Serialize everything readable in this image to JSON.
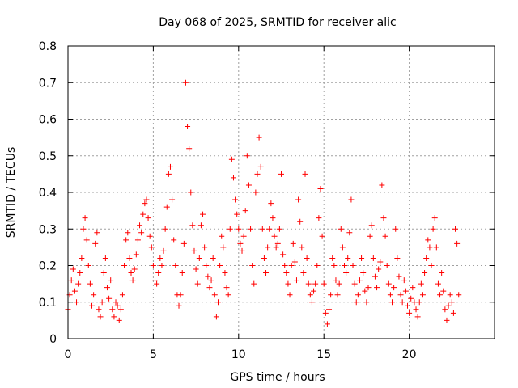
{
  "chart_data": {
    "type": "scatter",
    "title": "Day 068 of 2025, SRMTID for receiver alic",
    "xlabel": "GPS time / hours",
    "ylabel": "SRMTID / TECUs",
    "xlim": [
      0,
      25
    ],
    "ylim": [
      0,
      0.8
    ],
    "xticks": [
      0,
      5,
      10,
      15,
      20
    ],
    "yticks": [
      0,
      0.1,
      0.2,
      0.3,
      0.4,
      0.5,
      0.6,
      0.7,
      0.8
    ],
    "xtick_labels": [
      "0",
      "5",
      "10",
      "15",
      "20"
    ],
    "ytick_labels": [
      "0",
      "0.1",
      "0.2",
      "0.3",
      "0.4",
      "0.5",
      "0.6",
      "0.7",
      "0.8"
    ],
    "grid": true,
    "marker": "+",
    "color": "#ff0000",
    "series": [
      {
        "name": "SRMTID",
        "points": [
          [
            0.0,
            0.08
          ],
          [
            0.1,
            0.12
          ],
          [
            0.2,
            0.16
          ],
          [
            0.3,
            0.19
          ],
          [
            0.4,
            0.13
          ],
          [
            0.5,
            0.1
          ],
          [
            0.6,
            0.15
          ],
          [
            0.7,
            0.18
          ],
          [
            0.8,
            0.22
          ],
          [
            0.9,
            0.3
          ],
          [
            1.0,
            0.33
          ],
          [
            1.1,
            0.27
          ],
          [
            1.2,
            0.2
          ],
          [
            1.3,
            0.15
          ],
          [
            1.4,
            0.09
          ],
          [
            1.5,
            0.12
          ],
          [
            1.6,
            0.26
          ],
          [
            1.7,
            0.29
          ],
          [
            1.8,
            0.08
          ],
          [
            1.9,
            0.06
          ],
          [
            2.0,
            0.1
          ],
          [
            2.1,
            0.18
          ],
          [
            2.2,
            0.22
          ],
          [
            2.3,
            0.14
          ],
          [
            2.4,
            0.11
          ],
          [
            2.5,
            0.16
          ],
          [
            2.6,
            0.08
          ],
          [
            2.7,
            0.06
          ],
          [
            2.8,
            0.1
          ],
          [
            2.9,
            0.09
          ],
          [
            3.0,
            0.05
          ],
          [
            3.1,
            0.08
          ],
          [
            3.2,
            0.12
          ],
          [
            3.3,
            0.2
          ],
          [
            3.4,
            0.27
          ],
          [
            3.5,
            0.29
          ],
          [
            3.6,
            0.22
          ],
          [
            3.7,
            0.18
          ],
          [
            3.8,
            0.16
          ],
          [
            3.9,
            0.19
          ],
          [
            4.0,
            0.23
          ],
          [
            4.1,
            0.27
          ],
          [
            4.2,
            0.31
          ],
          [
            4.3,
            0.29
          ],
          [
            4.4,
            0.34
          ],
          [
            4.5,
            0.37
          ],
          [
            4.6,
            0.38
          ],
          [
            4.7,
            0.33
          ],
          [
            4.8,
            0.28
          ],
          [
            4.9,
            0.25
          ],
          [
            5.0,
            0.2
          ],
          [
            5.1,
            0.16
          ],
          [
            5.2,
            0.15
          ],
          [
            5.3,
            0.18
          ],
          [
            5.4,
            0.22
          ],
          [
            5.5,
            0.2
          ],
          [
            5.6,
            0.24
          ],
          [
            5.7,
            0.3
          ],
          [
            5.8,
            0.36
          ],
          [
            5.9,
            0.45
          ],
          [
            6.0,
            0.47
          ],
          [
            6.1,
            0.38
          ],
          [
            6.2,
            0.27
          ],
          [
            6.3,
            0.2
          ],
          [
            6.4,
            0.12
          ],
          [
            6.5,
            0.09
          ],
          [
            6.6,
            0.12
          ],
          [
            6.7,
            0.18
          ],
          [
            6.8,
            0.26
          ],
          [
            6.9,
            0.7
          ],
          [
            7.0,
            0.58
          ],
          [
            7.1,
            0.52
          ],
          [
            7.2,
            0.4
          ],
          [
            7.3,
            0.31
          ],
          [
            7.4,
            0.24
          ],
          [
            7.5,
            0.19
          ],
          [
            7.6,
            0.15
          ],
          [
            7.7,
            0.22
          ],
          [
            7.8,
            0.31
          ],
          [
            7.9,
            0.34
          ],
          [
            8.0,
            0.25
          ],
          [
            8.1,
            0.2
          ],
          [
            8.2,
            0.17
          ],
          [
            8.3,
            0.14
          ],
          [
            8.4,
            0.16
          ],
          [
            8.5,
            0.22
          ],
          [
            8.6,
            0.12
          ],
          [
            8.7,
            0.06
          ],
          [
            8.8,
            0.1
          ],
          [
            8.9,
            0.2
          ],
          [
            9.0,
            0.28
          ],
          [
            9.1,
            0.25
          ],
          [
            9.2,
            0.18
          ],
          [
            9.3,
            0.14
          ],
          [
            9.4,
            0.12
          ],
          [
            9.5,
            0.3
          ],
          [
            9.6,
            0.49
          ],
          [
            9.7,
            0.44
          ],
          [
            9.8,
            0.38
          ],
          [
            9.9,
            0.34
          ],
          [
            10.0,
            0.3
          ],
          [
            10.1,
            0.26
          ],
          [
            10.2,
            0.24
          ],
          [
            10.3,
            0.28
          ],
          [
            10.4,
            0.35
          ],
          [
            10.5,
            0.5
          ],
          [
            10.6,
            0.42
          ],
          [
            10.7,
            0.3
          ],
          [
            10.8,
            0.2
          ],
          [
            10.9,
            0.15
          ],
          [
            11.0,
            0.4
          ],
          [
            11.1,
            0.45
          ],
          [
            11.2,
            0.55
          ],
          [
            11.3,
            0.47
          ],
          [
            11.4,
            0.3
          ],
          [
            11.5,
            0.22
          ],
          [
            11.6,
            0.18
          ],
          [
            11.7,
            0.25
          ],
          [
            11.8,
            0.3
          ],
          [
            11.9,
            0.37
          ],
          [
            12.0,
            0.33
          ],
          [
            12.1,
            0.28
          ],
          [
            12.2,
            0.25
          ],
          [
            12.3,
            0.26
          ],
          [
            12.4,
            0.3
          ],
          [
            12.5,
            0.45
          ],
          [
            12.6,
            0.23
          ],
          [
            12.7,
            0.2
          ],
          [
            12.8,
            0.18
          ],
          [
            12.9,
            0.15
          ],
          [
            13.0,
            0.12
          ],
          [
            13.1,
            0.2
          ],
          [
            13.2,
            0.26
          ],
          [
            13.3,
            0.21
          ],
          [
            13.4,
            0.16
          ],
          [
            13.5,
            0.38
          ],
          [
            13.6,
            0.32
          ],
          [
            13.7,
            0.25
          ],
          [
            13.8,
            0.18
          ],
          [
            13.9,
            0.45
          ],
          [
            14.0,
            0.22
          ],
          [
            14.1,
            0.15
          ],
          [
            14.2,
            0.12
          ],
          [
            14.3,
            0.1
          ],
          [
            14.4,
            0.13
          ],
          [
            14.5,
            0.15
          ],
          [
            14.6,
            0.2
          ],
          [
            14.7,
            0.33
          ],
          [
            14.8,
            0.41
          ],
          [
            14.9,
            0.28
          ],
          [
            15.0,
            0.15
          ],
          [
            15.1,
            0.07
          ],
          [
            15.2,
            0.04
          ],
          [
            15.3,
            0.08
          ],
          [
            15.4,
            0.12
          ],
          [
            15.5,
            0.22
          ],
          [
            15.6,
            0.2
          ],
          [
            15.7,
            0.16
          ],
          [
            15.8,
            0.12
          ],
          [
            15.9,
            0.15
          ],
          [
            16.0,
            0.3
          ],
          [
            16.1,
            0.25
          ],
          [
            16.2,
            0.2
          ],
          [
            16.3,
            0.18
          ],
          [
            16.4,
            0.22
          ],
          [
            16.5,
            0.29
          ],
          [
            16.6,
            0.38
          ],
          [
            16.7,
            0.2
          ],
          [
            16.8,
            0.15
          ],
          [
            16.9,
            0.1
          ],
          [
            17.0,
            0.12
          ],
          [
            17.1,
            0.16
          ],
          [
            17.2,
            0.22
          ],
          [
            17.3,
            0.18
          ],
          [
            17.4,
            0.13
          ],
          [
            17.5,
            0.1
          ],
          [
            17.6,
            0.14
          ],
          [
            17.7,
            0.28
          ],
          [
            17.8,
            0.31
          ],
          [
            17.9,
            0.22
          ],
          [
            18.0,
            0.17
          ],
          [
            18.1,
            0.14
          ],
          [
            18.2,
            0.19
          ],
          [
            18.3,
            0.21
          ],
          [
            18.4,
            0.42
          ],
          [
            18.5,
            0.33
          ],
          [
            18.6,
            0.28
          ],
          [
            18.7,
            0.2
          ],
          [
            18.8,
            0.15
          ],
          [
            18.9,
            0.12
          ],
          [
            19.0,
            0.1
          ],
          [
            19.1,
            0.14
          ],
          [
            19.2,
            0.3
          ],
          [
            19.3,
            0.22
          ],
          [
            19.4,
            0.17
          ],
          [
            19.5,
            0.12
          ],
          [
            19.6,
            0.1
          ],
          [
            19.7,
            0.16
          ],
          [
            19.8,
            0.13
          ],
          [
            19.9,
            0.09
          ],
          [
            20.0,
            0.07
          ],
          [
            20.1,
            0.11
          ],
          [
            20.2,
            0.14
          ],
          [
            20.3,
            0.1
          ],
          [
            20.4,
            0.08
          ],
          [
            20.5,
            0.06
          ],
          [
            20.6,
            0.1
          ],
          [
            20.7,
            0.15
          ],
          [
            20.8,
            0.12
          ],
          [
            20.9,
            0.18
          ],
          [
            21.0,
            0.22
          ],
          [
            21.1,
            0.27
          ],
          [
            21.2,
            0.25
          ],
          [
            21.3,
            0.2
          ],
          [
            21.4,
            0.3
          ],
          [
            21.5,
            0.33
          ],
          [
            21.6,
            0.25
          ],
          [
            21.7,
            0.15
          ],
          [
            21.8,
            0.12
          ],
          [
            21.9,
            0.18
          ],
          [
            22.0,
            0.13
          ],
          [
            22.1,
            0.08
          ],
          [
            22.2,
            0.05
          ],
          [
            22.3,
            0.09
          ],
          [
            22.4,
            0.12
          ],
          [
            22.5,
            0.1
          ],
          [
            22.6,
            0.07
          ],
          [
            22.7,
            0.3
          ],
          [
            22.8,
            0.26
          ],
          [
            22.9,
            0.12
          ]
        ]
      }
    ]
  }
}
